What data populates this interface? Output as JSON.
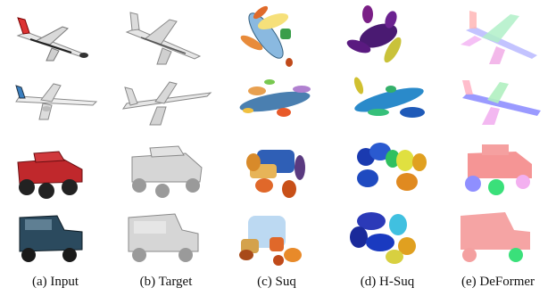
{
  "figure": {
    "columns": [
      {
        "key": "input",
        "caption": "(a) Input"
      },
      {
        "key": "target",
        "caption": "(b) Target"
      },
      {
        "key": "suq",
        "caption": "(c) Suq"
      },
      {
        "key": "hsuq",
        "caption": "(d) H-Suq"
      },
      {
        "key": "deformer",
        "caption": "(e) DeFormer"
      }
    ],
    "rows": [
      {
        "key": "airplane-1",
        "object": "airplane"
      },
      {
        "key": "airplane-2",
        "object": "airplane"
      },
      {
        "key": "truck",
        "object": "monster-truck"
      },
      {
        "key": "jeep",
        "object": "jeep"
      }
    ]
  }
}
